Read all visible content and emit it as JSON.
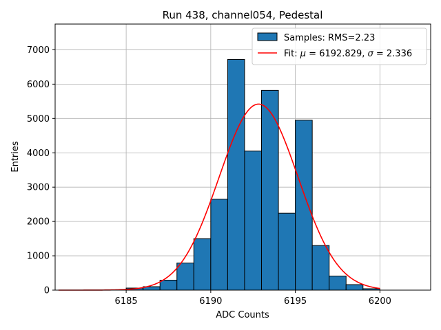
{
  "chart_data": {
    "type": "bar",
    "title": "Run 438, channel054, Pedestal",
    "xlabel": "ADC Counts",
    "ylabel": "Entries",
    "xlim": [
      6180.8,
      6203.0
    ],
    "ylim": [
      0,
      7750
    ],
    "xticks": [
      6185,
      6190,
      6195,
      6200
    ],
    "yticks": [
      0,
      1000,
      2000,
      3000,
      4000,
      5000,
      6000,
      7000
    ],
    "grid": true,
    "legend_placement": "top-right",
    "bar_color": "#1f77b4",
    "fit_color": "#ff0000",
    "histogram": {
      "name": "Samples: RMS=2.23",
      "bin_edges": [
        6185,
        6186,
        6187,
        6188,
        6189,
        6190,
        6191,
        6192,
        6193,
        6194,
        6195,
        6196,
        6197,
        6198,
        6199,
        6200
      ],
      "counts": [
        60,
        100,
        290,
        790,
        1500,
        2650,
        6720,
        4050,
        5820,
        2240,
        4950,
        1300,
        410,
        160,
        40
      ]
    },
    "fit": {
      "name_prefix": "Fit: ",
      "mu_symbol": "μ",
      "mu_text": " = 6192.829, ",
      "sigma_symbol": "σ",
      "sigma_text": " = 2.336",
      "mu": 6192.829,
      "sigma": 2.336,
      "amplitude": 5420,
      "x_range": [
        6181,
        6200
      ]
    }
  }
}
